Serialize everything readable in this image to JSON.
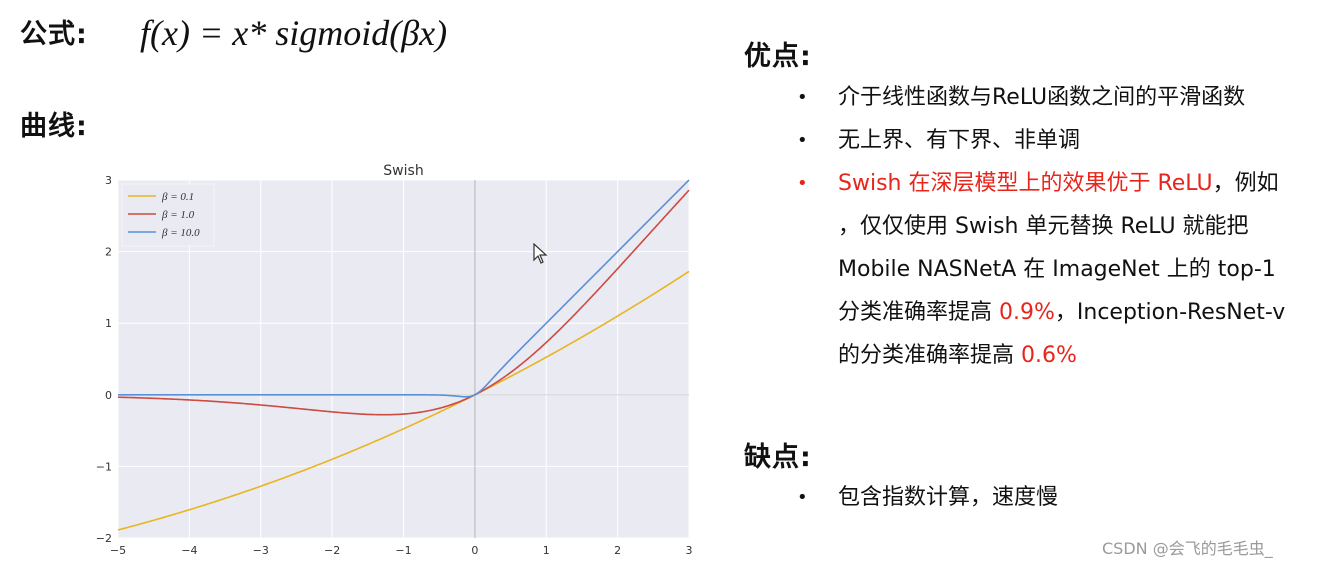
{
  "formula_heading": "公式:",
  "formula_text": "f(x) = x* sigmoid(βx)",
  "curve_heading": "曲线:",
  "pros_heading": "优点:",
  "cons_heading": "缺点:",
  "pros": {
    "item1": "介于线性函数与ReLU函数之间的平滑函数",
    "item2": "无上界、有下界、非单调",
    "item3_red": "Swish 在深层模型上的效果优于 ReLU",
    "item3_cont1": "，例如",
    "item3_line2": "，仅仅使用 Swish 单元替换 ReLU 就能把",
    "item3_line3": "Mobile NASNetA 在 ImageNet 上的 top-1",
    "item3_line4a": "分类准确率提高 ",
    "item3_line4_red": "0.9%",
    "item3_line4b": "，Inception-ResNet-v",
    "item3_line5a": "的分类准确率提高 ",
    "item3_line5_red": "0.6%"
  },
  "cons": {
    "item1": "包含指数计算，速度慢"
  },
  "watermark": "CSDN @会飞的毛毛虫_",
  "colors": {
    "red_text": "#e8241b",
    "beta_0_1": "#e8b520",
    "beta_1": "#cc4b42",
    "beta_10": "#5a8fd8",
    "plot_bg": "#eaeaf2"
  },
  "icons": {
    "cursor": "mouse-pointer-icon"
  },
  "chart_data": {
    "type": "line",
    "title": "Swish",
    "xlabel": "",
    "ylabel": "",
    "xlim": [
      -5,
      3
    ],
    "ylim": [
      -2,
      3
    ],
    "xticks": [
      -5,
      -4,
      -3,
      -2,
      -1,
      0,
      1,
      2,
      3
    ],
    "yticks": [
      -2,
      -1,
      0,
      1,
      2,
      3
    ],
    "xtick_labels": [
      "−5",
      "−4",
      "−3",
      "−2",
      "−1",
      "0",
      "1",
      "2",
      "3"
    ],
    "ytick_labels": [
      "−2",
      "−1",
      "0",
      "1",
      "2",
      "3"
    ],
    "legend_position": "top-left",
    "function": "x * sigmoid(beta * x)",
    "x": [
      -5,
      -4.5,
      -4,
      -3.5,
      -3,
      -2.5,
      -2,
      -1.5,
      -1,
      -0.5,
      0,
      0.5,
      1,
      1.5,
      2,
      2.5,
      3
    ],
    "series": [
      {
        "name": "β = 0.1",
        "beta": 0.1,
        "color": "#e8b520",
        "values": [
          -1.89,
          -1.76,
          -1.6,
          -1.44,
          -1.28,
          -1.1,
          -0.9,
          -0.69,
          -0.48,
          -0.24,
          0,
          0.26,
          0.52,
          0.81,
          1.1,
          1.4,
          1.72
        ]
      },
      {
        "name": "β = 1.0",
        "beta": 1.0,
        "color": "#cc4b42",
        "values": [
          -0.03,
          -0.05,
          -0.07,
          -0.1,
          -0.14,
          -0.19,
          -0.24,
          -0.27,
          -0.27,
          -0.19,
          0,
          0.31,
          0.73,
          1.23,
          1.76,
          2.31,
          2.86
        ]
      },
      {
        "name": "β = 10.0",
        "beta": 10.0,
        "color": "#5a8fd8",
        "values": [
          0,
          0,
          0,
          0,
          0,
          0,
          0,
          0,
          0,
          0,
          0,
          0.5,
          1.0,
          1.5,
          2.0,
          2.5,
          3.0
        ]
      }
    ]
  }
}
